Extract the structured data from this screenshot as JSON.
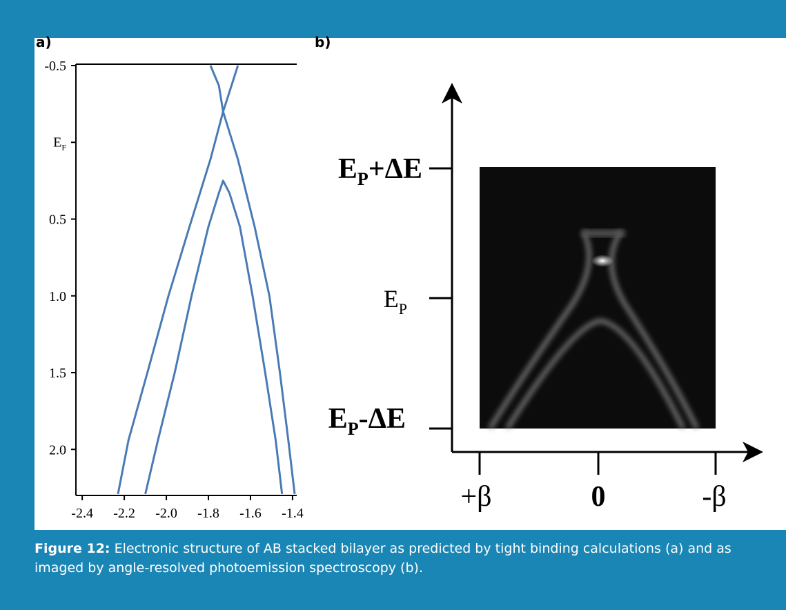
{
  "chart_data": {
    "type": "line",
    "panel_label": "a)",
    "xlim": [
      -2.43,
      -1.38
    ],
    "ylim": [
      -0.5,
      2.3
    ],
    "xticks": [
      -2.4,
      -2.2,
      {
        "value": -2,
        "label": "-2.0"
      },
      -1.8,
      -1.6,
      -1.4
    ],
    "yticks": [
      -0.5,
      {
        "value": 0,
        "label": "E",
        "label_sub": "F"
      },
      0.5,
      {
        "value": 1,
        "label": "1.0"
      },
      1.5,
      {
        "value": 2,
        "label": "2.0"
      }
    ],
    "series": [
      {
        "color": "#4a7ab5",
        "x": [
          -1.66,
          -1.69,
          -1.73,
          -1.79,
          -1.89,
          -1.99,
          -2.09,
          -2.18,
          -2.23
        ],
        "values": [
          -0.5,
          -0.37,
          -0.2,
          0.11,
          0.55,
          1.0,
          1.5,
          1.94,
          2.29
        ]
      },
      {
        "color": "#4a7ab5",
        "x": [
          -1.79,
          -1.75,
          -1.73,
          -1.66,
          -1.58,
          -1.51,
          -1.46,
          -1.42,
          -1.39
        ],
        "values": [
          -0.5,
          -0.37,
          -0.2,
          0.11,
          0.55,
          1.0,
          1.5,
          1.94,
          2.29
        ]
      },
      {
        "color": "#4a7ab5",
        "x": [
          -2.1,
          -2.04,
          -1.96,
          -1.88,
          -1.8,
          -1.75,
          -1.73,
          -1.7,
          -1.65,
          -1.59,
          -1.53,
          -1.48,
          -1.45
        ],
        "values": [
          2.29,
          1.94,
          1.5,
          1.0,
          0.55,
          0.33,
          0.25,
          0.33,
          0.55,
          1.0,
          1.5,
          1.94,
          2.29
        ]
      }
    ]
  },
  "panel_b": {
    "panel_label": "b)",
    "y_labels": [
      {
        "main": "E",
        "sub": "P",
        "rest": "+ΔE"
      },
      {
        "main": "E",
        "sub": "P"
      },
      {
        "main": "E",
        "sub": "P",
        "rest": "-ΔE"
      }
    ],
    "x_labels": [
      "+β",
      "0",
      "-β"
    ]
  },
  "caption": {
    "label": "Figure 12:",
    "text": "Electronic structure of AB stacked bilayer as predicted by tight binding calculations (a) and as imaged by angle-resolved photoemission spectroscopy (b)."
  }
}
